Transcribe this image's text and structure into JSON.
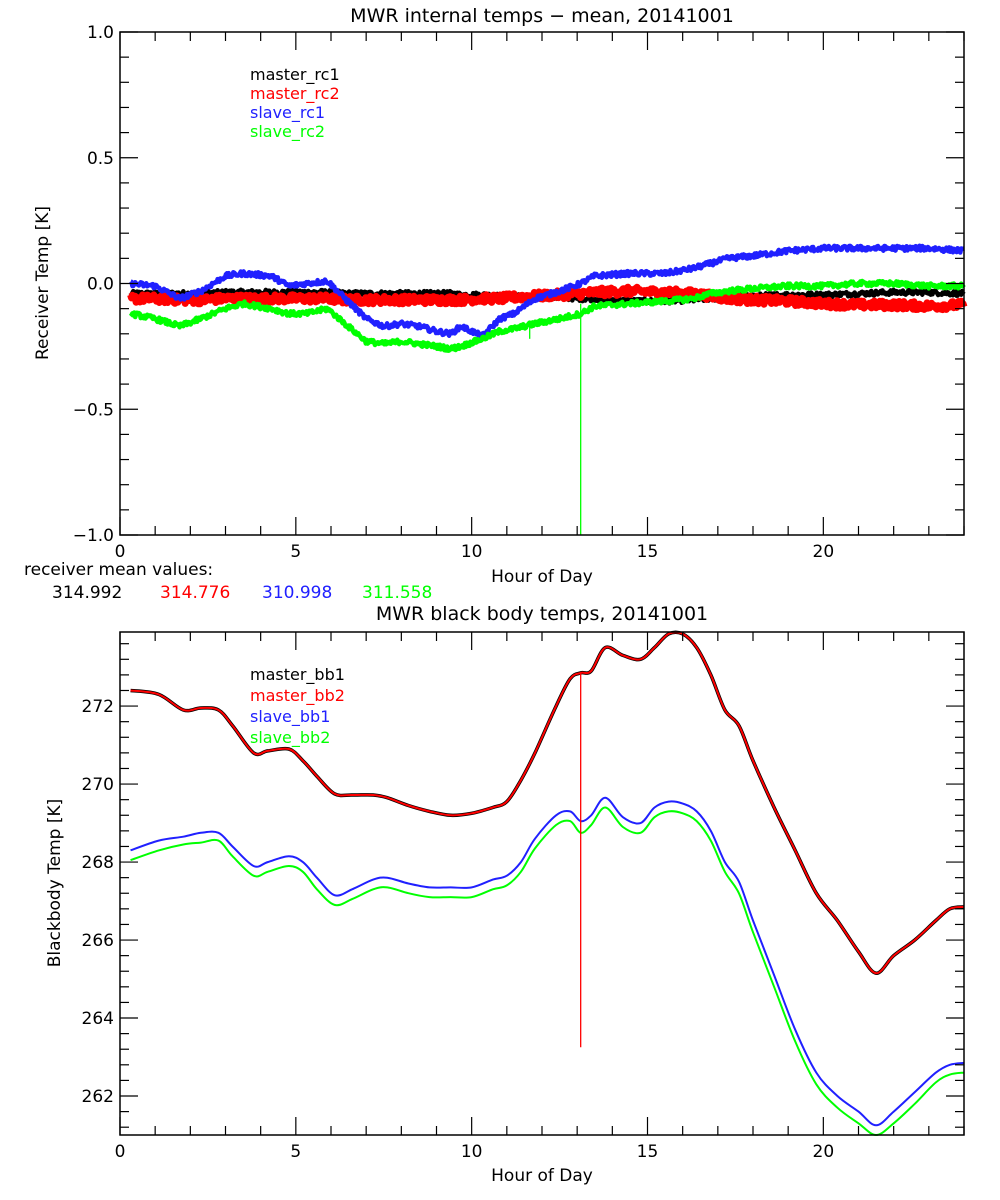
{
  "chart_data": [
    {
      "type": "line",
      "title": "MWR internal temps − mean, 20141001",
      "xlabel": "Hour of Day",
      "ylabel": "Receiver Temp [K]",
      "xlim": [
        0,
        24
      ],
      "ylim": [
        -1.0,
        1.0
      ],
      "xticks": [
        "0",
        "5",
        "10",
        "15",
        "20"
      ],
      "yticks": [
        "1.0",
        "0.5",
        "0.0",
        "−0.5",
        "−1.0"
      ],
      "xtick_values": [
        0,
        5,
        10,
        15,
        20
      ],
      "ytick_values": [
        1.0,
        0.5,
        0.0,
        -0.5,
        -1.0
      ],
      "grid": false,
      "legend_position": "top-left",
      "noise": 0.02,
      "x": [
        0.3,
        1.0,
        1.7,
        2.3,
        3.0,
        3.5,
        4.3,
        4.8,
        5.3,
        5.9,
        6.4,
        7.0,
        7.5,
        8.0,
        8.5,
        9.0,
        9.4,
        9.7,
        10.3,
        10.8,
        11.2,
        11.8,
        12.5,
        13.1,
        13.5,
        14.5,
        15.5,
        16.3,
        16.8,
        17.3,
        18.0,
        19.0,
        20.0,
        21.0,
        22.0,
        23.0,
        24.0
      ],
      "series": [
        {
          "name": "master_rc1",
          "color": "#000000",
          "values": [
            -0.04,
            -0.04,
            -0.04,
            -0.04,
            -0.035,
            -0.035,
            -0.035,
            -0.035,
            -0.035,
            -0.035,
            -0.04,
            -0.04,
            -0.04,
            -0.04,
            -0.04,
            -0.04,
            -0.04,
            -0.045,
            -0.045,
            -0.05,
            -0.05,
            -0.055,
            -0.055,
            -0.06,
            -0.06,
            -0.07,
            -0.07,
            -0.065,
            -0.06,
            -0.055,
            -0.05,
            -0.045,
            -0.045,
            -0.04,
            -0.035,
            -0.035,
            -0.04
          ]
        },
        {
          "name": "master_rc2",
          "color": "#ff0000",
          "values": [
            -0.06,
            -0.06,
            -0.065,
            -0.065,
            -0.06,
            -0.06,
            -0.06,
            -0.06,
            -0.06,
            -0.06,
            -0.065,
            -0.065,
            -0.065,
            -0.065,
            -0.065,
            -0.065,
            -0.065,
            -0.065,
            -0.06,
            -0.06,
            -0.055,
            -0.05,
            -0.045,
            -0.04,
            -0.035,
            -0.03,
            -0.035,
            -0.04,
            -0.05,
            -0.06,
            -0.065,
            -0.07,
            -0.08,
            -0.085,
            -0.085,
            -0.09,
            -0.085
          ]
        },
        {
          "name": "slave_rc1",
          "color": "#2020ff",
          "values": [
            0.0,
            -0.01,
            -0.06,
            -0.03,
            0.03,
            0.04,
            0.03,
            -0.01,
            0.0,
            0.01,
            -0.06,
            -0.14,
            -0.17,
            -0.16,
            -0.17,
            -0.19,
            -0.2,
            -0.17,
            -0.21,
            -0.14,
            -0.12,
            -0.06,
            -0.03,
            0.0,
            0.03,
            0.04,
            0.04,
            0.06,
            0.08,
            0.1,
            0.11,
            0.13,
            0.14,
            0.14,
            0.14,
            0.14,
            0.13
          ]
        },
        {
          "name": "slave_rc2",
          "color": "#00ff00",
          "values": [
            -0.12,
            -0.14,
            -0.17,
            -0.14,
            -0.1,
            -0.08,
            -0.1,
            -0.12,
            -0.12,
            -0.1,
            -0.16,
            -0.23,
            -0.24,
            -0.23,
            -0.24,
            -0.25,
            -0.26,
            -0.25,
            -0.22,
            -0.19,
            -0.18,
            -0.16,
            -0.14,
            -0.12,
            -0.09,
            -0.08,
            -0.07,
            -0.06,
            -0.04,
            -0.03,
            -0.02,
            -0.01,
            -0.01,
            0.0,
            0.0,
            -0.01,
            -0.01
          ]
        }
      ],
      "spikes": [
        {
          "series": "slave_rc2",
          "x": 11.65,
          "from": -0.15,
          "to": -0.22
        },
        {
          "series": "slave_rc2",
          "x": 13.1,
          "from": -0.08,
          "to": -1.0
        }
      ],
      "footer": {
        "label": "receiver mean values:",
        "values": [
          {
            "text": "314.992",
            "color": "#000000"
          },
          {
            "text": "314.776",
            "color": "#ff0000"
          },
          {
            "text": "310.998",
            "color": "#2020ff"
          },
          {
            "text": "311.558",
            "color": "#00ff00"
          }
        ]
      }
    },
    {
      "type": "line",
      "title": "MWR black body temps, 20141001",
      "xlabel": "Hour of Day",
      "ylabel": "Blackbody Temp [K]",
      "xlim": [
        0,
        24
      ],
      "ylim": [
        261.0,
        273.9
      ],
      "xticks": [
        "0",
        "5",
        "10",
        "15",
        "20"
      ],
      "yticks": [
        "262",
        "264",
        "266",
        "268",
        "270",
        "272"
      ],
      "xtick_values": [
        0,
        5,
        10,
        15,
        20
      ],
      "ytick_values": [
        262,
        264,
        266,
        268,
        270,
        272
      ],
      "grid": false,
      "legend_position": "top-left",
      "x": [
        0.3,
        1.1,
        1.8,
        2.3,
        2.8,
        3.2,
        3.8,
        4.2,
        4.8,
        5.2,
        5.6,
        6.1,
        6.6,
        7.2,
        7.6,
        8.2,
        8.8,
        9.4,
        10.0,
        10.6,
        11.0,
        11.4,
        11.8,
        12.4,
        12.8,
        13.1,
        13.4,
        13.8,
        14.3,
        14.8,
        15.2,
        15.6,
        16.0,
        16.4,
        16.8,
        17.2,
        17.6,
        18.0,
        18.6,
        19.2,
        19.8,
        20.4,
        21.0,
        21.5,
        22.0,
        22.6,
        23.2,
        23.6,
        24.0
      ],
      "series": [
        {
          "name": "master_bb1",
          "color": "#000000",
          "values": [
            272.4,
            272.3,
            271.9,
            271.95,
            271.9,
            271.5,
            270.8,
            270.85,
            270.9,
            270.6,
            270.2,
            269.75,
            269.72,
            269.72,
            269.65,
            269.45,
            269.3,
            269.2,
            269.25,
            269.4,
            269.55,
            270.1,
            270.8,
            272.0,
            272.7,
            272.85,
            272.9,
            273.5,
            273.3,
            273.2,
            273.5,
            273.85,
            273.85,
            273.5,
            272.8,
            271.9,
            271.5,
            270.6,
            269.4,
            268.3,
            267.2,
            266.5,
            265.7,
            265.15,
            265.6,
            266.0,
            266.5,
            266.8,
            266.85
          ]
        },
        {
          "name": "master_bb2",
          "color": "#ff0000",
          "values": [
            272.4,
            272.3,
            271.9,
            271.95,
            271.9,
            271.5,
            270.8,
            270.85,
            270.9,
            270.6,
            270.2,
            269.75,
            269.72,
            269.72,
            269.65,
            269.45,
            269.3,
            269.2,
            269.25,
            269.4,
            269.55,
            270.1,
            270.8,
            272.0,
            272.7,
            272.85,
            272.9,
            273.5,
            273.3,
            273.2,
            273.5,
            273.85,
            273.85,
            273.5,
            272.8,
            271.9,
            271.5,
            270.6,
            269.4,
            268.3,
            267.2,
            266.5,
            265.7,
            265.15,
            265.6,
            266.0,
            266.5,
            266.8,
            266.85
          ]
        },
        {
          "name": "slave_bb1",
          "color": "#2020ff",
          "values": [
            268.3,
            268.55,
            268.65,
            268.75,
            268.75,
            268.4,
            267.9,
            268.0,
            268.15,
            268.0,
            267.6,
            267.15,
            267.3,
            267.55,
            267.6,
            267.45,
            267.35,
            267.35,
            267.35,
            267.55,
            267.65,
            268.0,
            268.6,
            269.2,
            269.3,
            269.05,
            269.2,
            269.65,
            269.15,
            269.0,
            269.4,
            269.55,
            269.5,
            269.3,
            268.8,
            268.0,
            267.5,
            266.5,
            265.1,
            263.7,
            262.6,
            262.0,
            261.6,
            261.25,
            261.6,
            262.1,
            262.6,
            262.8,
            262.85
          ]
        },
        {
          "name": "slave_bb2",
          "color": "#00ff00",
          "values": [
            268.05,
            268.3,
            268.45,
            268.5,
            268.55,
            268.15,
            267.65,
            267.75,
            267.9,
            267.75,
            267.3,
            266.9,
            267.05,
            267.3,
            267.35,
            267.2,
            267.1,
            267.1,
            267.1,
            267.3,
            267.4,
            267.75,
            268.35,
            268.95,
            269.05,
            268.75,
            268.95,
            269.4,
            268.9,
            268.75,
            269.15,
            269.3,
            269.25,
            269.05,
            268.55,
            267.75,
            267.2,
            266.2,
            264.8,
            263.4,
            262.3,
            261.7,
            261.3,
            260.95,
            261.3,
            261.8,
            262.35,
            262.55,
            262.6
          ]
        }
      ],
      "spikes": [
        {
          "series": "master_bb2",
          "x": 13.1,
          "from": 272.85,
          "to": 263.25
        }
      ]
    }
  ]
}
